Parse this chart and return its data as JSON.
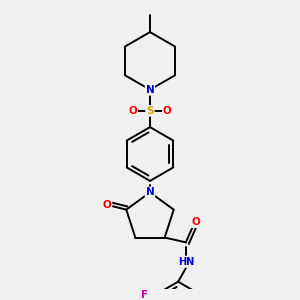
{
  "background_color": "#f0f0f0",
  "bond_color": "#000000",
  "atom_colors": {
    "N": "#0000cc",
    "O": "#ff0000",
    "S": "#ccaa00",
    "F": "#cc00aa",
    "H": "#000000",
    "C": "#000000"
  },
  "figsize": [
    3.0,
    3.0
  ],
  "dpi": 100
}
